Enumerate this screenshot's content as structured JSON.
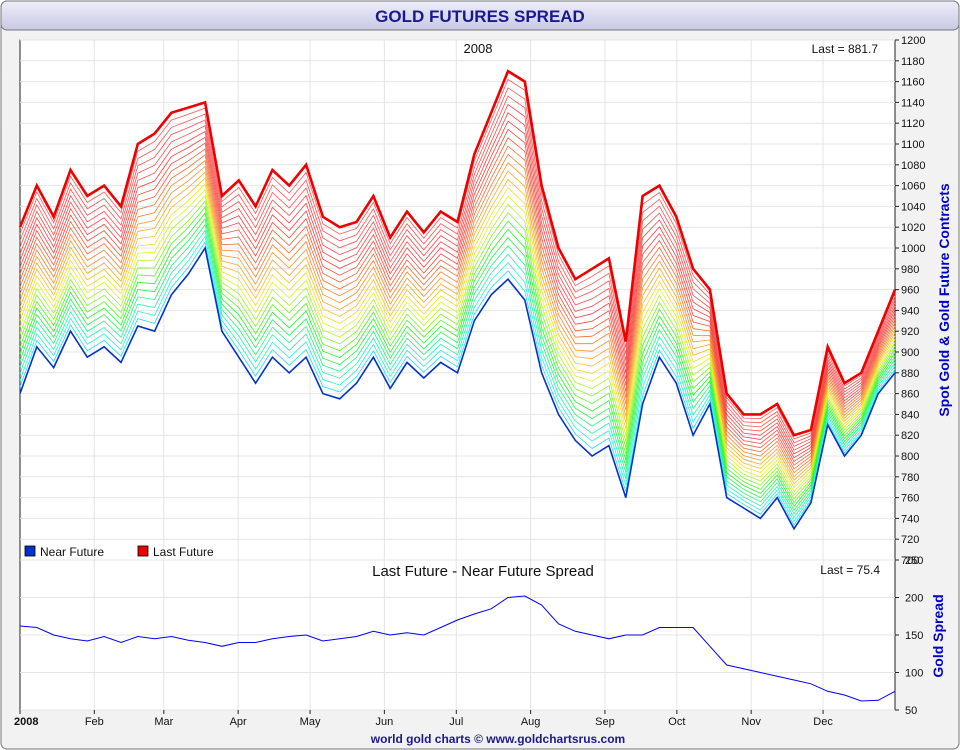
{
  "header": {
    "title": "GOLD FUTURES SPREAD"
  },
  "footer": {
    "credit": "world gold charts © www.goldchartsrus.com"
  },
  "colors": {
    "title_text": "#1a1a8c",
    "axis_label": "#0000cc",
    "near_future": "#0033cc",
    "last_future": "#ee0000",
    "spread_line": "#0000ff",
    "grid": "#e4e4e4",
    "header_bg": "#dcdcf0"
  },
  "chart_data": [
    {
      "type": "line",
      "title": "2008",
      "annotation": "Last = 881.7",
      "ylabel": "Spot Gold & Gold Future Contracts",
      "ylim": [
        700,
        1200
      ],
      "y_ticks": [
        700,
        720,
        740,
        760,
        780,
        800,
        820,
        840,
        860,
        880,
        900,
        920,
        940,
        960,
        980,
        1000,
        1020,
        1040,
        1060,
        1080,
        1100,
        1120,
        1140,
        1160,
        1180,
        1200
      ],
      "x_ticks": [
        "2008",
        "Feb",
        "Mar",
        "Apr",
        "May",
        "Jun",
        "Jul",
        "Aug",
        "Sep",
        "Oct",
        "Nov",
        "Dec"
      ],
      "grid": true,
      "legend_position": "bottom-left",
      "legend": [
        "Near Future",
        "Last Future"
      ],
      "x": [
        "Jan 1",
        "Jan 8",
        "Jan 15",
        "Jan 22",
        "Jan 29",
        "Feb 5",
        "Feb 12",
        "Feb 19",
        "Feb 26",
        "Mar 4",
        "Mar 11",
        "Mar 18",
        "Mar 25",
        "Apr 1",
        "Apr 8",
        "Apr 15",
        "Apr 22",
        "Apr 29",
        "May 6",
        "May 13",
        "May 20",
        "May 27",
        "Jun 3",
        "Jun 10",
        "Jun 17",
        "Jun 24",
        "Jul 1",
        "Jul 8",
        "Jul 15",
        "Jul 22",
        "Jul 29",
        "Aug 5",
        "Aug 12",
        "Aug 19",
        "Aug 26",
        "Sep 2",
        "Sep 9",
        "Sep 16",
        "Sep 23",
        "Sep 30",
        "Oct 7",
        "Oct 14",
        "Oct 21",
        "Oct 28",
        "Nov 4",
        "Nov 11",
        "Nov 18",
        "Nov 25",
        "Dec 2",
        "Dec 9",
        "Dec 16",
        "Dec 23",
        "Dec 31"
      ],
      "series": [
        {
          "name": "Near Future",
          "values": [
            860,
            905,
            885,
            920,
            895,
            905,
            890,
            925,
            920,
            955,
            975,
            1000,
            920,
            895,
            870,
            895,
            880,
            895,
            860,
            855,
            870,
            895,
            865,
            890,
            875,
            890,
            880,
            930,
            955,
            970,
            950,
            880,
            840,
            815,
            800,
            810,
            760,
            850,
            895,
            870,
            820,
            850,
            760,
            750,
            740,
            760,
            730,
            755,
            830,
            800,
            820,
            860,
            880
          ]
        },
        {
          "name": "Last Future",
          "values": [
            1020,
            1060,
            1030,
            1075,
            1050,
            1060,
            1040,
            1100,
            1110,
            1130,
            1135,
            1140,
            1050,
            1065,
            1040,
            1075,
            1060,
            1080,
            1030,
            1020,
            1025,
            1050,
            1010,
            1035,
            1015,
            1035,
            1025,
            1090,
            1130,
            1170,
            1160,
            1060,
            1000,
            970,
            980,
            990,
            910,
            1050,
            1060,
            1030,
            980,
            960,
            860,
            840,
            840,
            850,
            820,
            825,
            905,
            870,
            880,
            920,
            960
          ]
        }
      ]
    },
    {
      "type": "line",
      "title": "Last Future - Near Future Spread",
      "annotation": "Last = 75.4",
      "ylabel": "Gold Spread",
      "ylim": [
        50,
        250
      ],
      "y_ticks": [
        50,
        100,
        150,
        200,
        250
      ],
      "grid": true,
      "series": [
        {
          "name": "Spread",
          "values": [
            162,
            160,
            150,
            145,
            142,
            148,
            140,
            148,
            145,
            148,
            143,
            140,
            135,
            140,
            140,
            145,
            148,
            150,
            142,
            145,
            148,
            155,
            150,
            153,
            150,
            160,
            170,
            178,
            185,
            200,
            202,
            190,
            165,
            155,
            150,
            145,
            150,
            150,
            160,
            160,
            160,
            135,
            110,
            105,
            100,
            95,
            90,
            85,
            75,
            70,
            62,
            63,
            75
          ]
        }
      ]
    }
  ]
}
